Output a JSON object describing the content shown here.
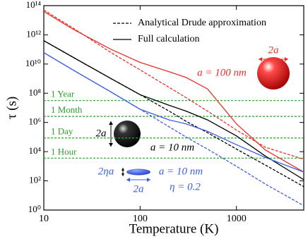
{
  "chart_data": {
    "type": "line",
    "x_label": "Temperature (K)",
    "y_label": "τ (s)",
    "xscale": "log",
    "yscale": "log",
    "xlim": [
      10,
      5000
    ],
    "ylim": [
      1,
      100000000000000
    ],
    "xticks": [
      10,
      100,
      1000
    ],
    "yticks": [
      {
        "value": 1,
        "label": "10⁰"
      },
      {
        "value": 100,
        "label": "10²"
      },
      {
        "value": 10000,
        "label": "10⁴"
      },
      {
        "value": 1000000,
        "label": "10⁶"
      },
      {
        "value": 100000000,
        "label": "10⁸"
      },
      {
        "value": 10000000000,
        "label": "10¹⁰"
      },
      {
        "value": 1000000000000,
        "label": "10¹²"
      },
      {
        "value": 100000000000000,
        "label": "10¹⁴"
      }
    ],
    "x": [
      10,
      20,
      50,
      100,
      200,
      300,
      500,
      1000,
      2000,
      5000
    ],
    "legend": [
      {
        "label": "Analytical Drude approximation",
        "style": "dashed"
      },
      {
        "label": "Full calculation",
        "style": "solid"
      }
    ],
    "series": [
      {
        "color": "#e8302a",
        "style": "solid",
        "values": [
          40000000000000,
          2500000000000,
          100000000000,
          13000000000,
          3000000000,
          1200000000,
          200000000,
          800000,
          13000,
          400
        ]
      },
      {
        "color": "#e8302a",
        "style": "dashed",
        "values": [
          50000000000000,
          3000000000000,
          60000000000,
          4000000000,
          250000000,
          50000000,
          6000000,
          300000,
          20000,
          3000
        ]
      },
      {
        "color": "#000000",
        "style": "solid",
        "values": [
          400000000000,
          30000000000,
          1000000000,
          80000000,
          15000000,
          6000000,
          1500000,
          120000,
          5000,
          120
        ]
      },
      {
        "color": "#000000",
        "style": "dashed",
        "values": [
          400000000000,
          30000000000,
          1000000000,
          80000000,
          6000000,
          1200000,
          200000,
          15000,
          1200,
          40
        ]
      },
      {
        "color": "#3a5fe0",
        "style": "solid",
        "values": [
          60000000000,
          4000000000,
          120000000,
          8000000,
          1500000,
          800000,
          250000,
          30000,
          4000,
          400
        ]
      },
      {
        "color": "#3a5fe0",
        "style": "dashed",
        "values": [
          60000000000,
          4000000000,
          120000000,
          8000000,
          500000,
          100000,
          15000,
          1000,
          60,
          2
        ]
      }
    ],
    "reference_lines": [
      {
        "label": "1 Year",
        "value": 31536000
      },
      {
        "label": "1 Month",
        "value": 2592000
      },
      {
        "label": "1 Day",
        "value": 86400
      },
      {
        "label": "1 Hour",
        "value": 3600
      }
    ],
    "reference_color": "#2ca02c",
    "annotations": [
      {
        "text": "2a",
        "color": "#e8302a"
      },
      {
        "text": "a = 100 nm",
        "color": "#e8302a"
      },
      {
        "text": "2a",
        "color": "#000000"
      },
      {
        "text": "a = 10 nm",
        "color": "#000000"
      },
      {
        "text": "2ηa",
        "color": "#3a5fe0"
      },
      {
        "text": "2a",
        "color": "#3a5fe0"
      },
      {
        "text": "a = 10 nm",
        "color": "#3a5fe0"
      },
      {
        "text": "η = 0.2",
        "color": "#3a5fe0"
      }
    ]
  }
}
